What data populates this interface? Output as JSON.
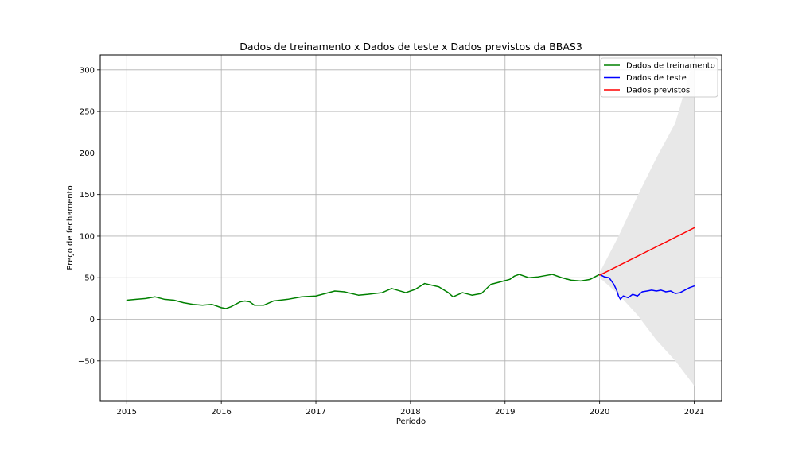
{
  "chart_data": {
    "type": "line",
    "title": "Dados de treinamento x Dados de teste x Dados previstos da BBAS3",
    "xlabel": "Período",
    "ylabel": "Preço de fechamento",
    "x_ticks": [
      "2015",
      "2016",
      "2017",
      "2018",
      "2019",
      "2020",
      "2021"
    ],
    "y_ticks": [
      -50,
      0,
      50,
      100,
      150,
      200,
      250,
      300
    ],
    "xlim": [
      2014.72,
      2021.29
    ],
    "ylim": [
      -98,
      318
    ],
    "grid": true,
    "legend_position": "top-right",
    "series": [
      {
        "name": "Dados de treinamento",
        "color": "#008000",
        "x": [
          2015.0,
          2015.1,
          2015.2,
          2015.3,
          2015.4,
          2015.5,
          2015.6,
          2015.7,
          2015.8,
          2015.9,
          2016.0,
          2016.05,
          2016.1,
          2016.15,
          2016.2,
          2016.25,
          2016.3,
          2016.35,
          2016.45,
          2016.55,
          2016.7,
          2016.85,
          2017.0,
          2017.1,
          2017.2,
          2017.3,
          2017.45,
          2017.55,
          2017.7,
          2017.8,
          2017.95,
          2018.05,
          2018.15,
          2018.3,
          2018.4,
          2018.45,
          2018.55,
          2018.65,
          2018.75,
          2018.85,
          2018.95,
          2019.05,
          2019.1,
          2019.15,
          2019.25,
          2019.35,
          2019.5,
          2019.6,
          2019.7,
          2019.8,
          2019.9,
          2020.0
        ],
        "y": [
          23,
          24,
          25,
          27,
          24,
          23,
          20,
          18,
          17,
          18,
          14,
          13,
          15,
          18,
          21,
          22,
          21,
          17,
          17,
          22,
          24,
          27,
          28,
          31,
          34,
          33,
          29,
          30,
          32,
          37,
          32,
          36,
          43,
          39,
          32,
          27,
          32,
          29,
          31,
          42,
          45,
          48,
          52,
          54,
          50,
          51,
          54,
          50,
          47,
          46,
          48,
          54
        ]
      },
      {
        "name": "Dados de teste",
        "color": "#0000ff",
        "x": [
          2020.0,
          2020.05,
          2020.1,
          2020.15,
          2020.18,
          2020.2,
          2020.22,
          2020.25,
          2020.3,
          2020.35,
          2020.4,
          2020.45,
          2020.5,
          2020.55,
          2020.6,
          2020.65,
          2020.7,
          2020.75,
          2020.8,
          2020.85,
          2020.9,
          2020.95,
          2021.0
        ],
        "y": [
          54,
          51,
          50,
          42,
          35,
          28,
          24,
          28,
          26,
          30,
          28,
          33,
          34,
          35,
          34,
          35,
          33,
          34,
          31,
          32,
          35,
          38,
          40
        ]
      },
      {
        "name": "Dados previstos",
        "color": "#ff0000",
        "x": [
          2020.0,
          2021.0
        ],
        "y": [
          53,
          110
        ]
      }
    ],
    "confidence_band": {
      "color": "#e8e8e8",
      "x": [
        2020.0,
        2020.2,
        2020.4,
        2020.6,
        2020.8,
        2021.0
      ],
      "upper": [
        56,
        100,
        148,
        194,
        236,
        315
      ],
      "lower": [
        50,
        30,
        5,
        -25,
        -50,
        -80
      ]
    }
  }
}
